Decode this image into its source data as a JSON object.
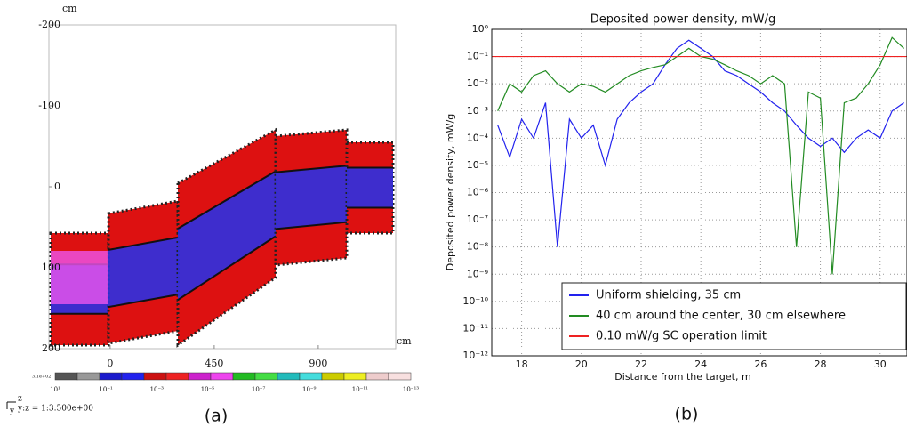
{
  "chart_data": [
    {
      "type": "map",
      "x_unit": "cm",
      "y_unit": "cm",
      "xlim": [
        -265,
        1235
      ],
      "xticks": [
        0,
        450,
        900
      ],
      "ylim": [
        -200,
        200
      ],
      "y_inverted": true,
      "yticks": [
        -200,
        -100,
        0,
        100,
        200
      ],
      "colorbar": {
        "max_label": "3.1e+02",
        "colors": [
          "#555555",
          "#999999",
          "#1a1acc",
          "#2222ee",
          "#cc1111",
          "#ee2222",
          "#cc22cc",
          "#ee44ee",
          "#22bb22",
          "#44dd44",
          "#22bbbb",
          "#44dddd",
          "#cccc00",
          "#eeee22",
          "#eecccc",
          "#f8e0e0"
        ],
        "labels": [
          "10¹",
          "10⁻¹",
          "10⁻³",
          "10⁻⁵",
          "10⁻⁷",
          "10⁻⁹",
          "10⁻¹¹",
          "10⁻¹³"
        ]
      },
      "axis_names": [
        "z",
        "y"
      ],
      "axis_note": "y:z = 1:3.500e+00",
      "caption": "(a)"
    },
    {
      "type": "line",
      "title": "Deposited power density, mW/g",
      "x_label": "Distance from the target, m",
      "y_label": "Deposited power density, mW/g",
      "log_y": true,
      "grid": true,
      "legend": "lower right",
      "xlim": [
        17,
        30.9
      ],
      "xticks": [
        18,
        20,
        22,
        24,
        26,
        28,
        30
      ],
      "ylim": [
        1e-12,
        1
      ],
      "yticks": [
        {
          "value": 1,
          "label": "10⁰"
        },
        {
          "value": 0.1,
          "label": "10⁻¹"
        },
        {
          "value": 0.01,
          "label": "10⁻²"
        },
        {
          "value": 0.001,
          "label": "10⁻³"
        },
        {
          "value": 0.0001,
          "label": "10⁻⁴"
        },
        {
          "value": 1e-05,
          "label": "10⁻⁵"
        },
        {
          "value": 1e-06,
          "label": "10⁻⁶"
        },
        {
          "value": 1e-07,
          "label": "10⁻⁷"
        },
        {
          "value": 1e-08,
          "label": "10⁻⁸"
        },
        {
          "value": 1e-09,
          "label": "10⁻⁹"
        },
        {
          "value": 1e-10,
          "label": "10⁻¹⁰"
        },
        {
          "value": 1e-11,
          "label": "10⁻¹¹"
        },
        {
          "value": 1e-12,
          "label": "10⁻¹²"
        }
      ],
      "x": [
        17.2,
        17.6,
        18.0,
        18.4,
        18.8,
        19.2,
        19.6,
        20.0,
        20.4,
        20.8,
        21.2,
        21.6,
        22.0,
        22.4,
        22.8,
        23.2,
        23.6,
        24.0,
        24.4,
        24.8,
        25.2,
        25.6,
        26.0,
        26.4,
        26.8,
        27.2,
        27.6,
        28.0,
        28.4,
        28.8,
        29.2,
        29.6,
        30.0,
        30.4,
        30.8
      ],
      "series": [
        {
          "name": "Uniform shielding, 35 cm",
          "color": "#2222ee",
          "values": [
            0.0003,
            2e-05,
            0.0005,
            0.0001,
            0.002,
            1e-08,
            0.0005,
            0.0001,
            0.0003,
            1e-05,
            0.0005,
            0.002,
            0.005,
            0.01,
            0.05,
            0.2,
            0.4,
            0.2,
            0.1,
            0.03,
            0.02,
            0.01,
            0.005,
            0.002,
            0.001,
            0.0003,
            0.0001,
            5e-05,
            0.0001,
            3e-05,
            0.0001,
            0.0002,
            0.0001,
            0.001,
            0.002
          ]
        },
        {
          "name": "40 cm around the center, 30 cm elsewhere",
          "color": "#228b22",
          "values": [
            0.001,
            0.01,
            0.005,
            0.02,
            0.03,
            0.01,
            0.005,
            0.01,
            0.008,
            0.005,
            0.01,
            0.02,
            0.03,
            0.04,
            0.05,
            0.1,
            0.2,
            0.1,
            0.08,
            0.05,
            0.03,
            0.02,
            0.01,
            0.02,
            0.01,
            1e-08,
            0.005,
            0.003,
            1e-09,
            0.002,
            0.003,
            0.01,
            0.05,
            0.5,
            0.2
          ]
        }
      ],
      "hline": {
        "name": "0.10 mW/g SC operation limit",
        "color": "#ee2222",
        "value": 0.1
      },
      "caption": "(b)"
    }
  ]
}
